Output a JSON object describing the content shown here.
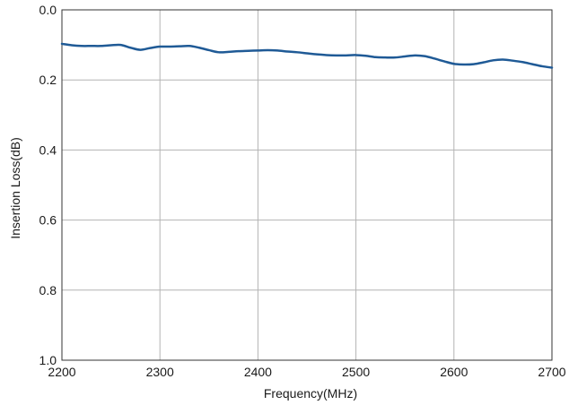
{
  "chart_data": {
    "type": "line",
    "xlabel": "Frequency(MHz)",
    "ylabel": "Insertion Loss(dB)",
    "xlim": [
      2200,
      2700
    ],
    "ylim": [
      0.0,
      1.0
    ],
    "y_inverted": true,
    "grid": true,
    "x_ticks": [
      2200,
      2300,
      2400,
      2500,
      2600,
      2700
    ],
    "x_tick_labels": [
      "2200",
      "2300",
      "2400",
      "2500",
      "2600",
      "2700"
    ],
    "y_ticks": [
      0.0,
      0.2,
      0.4,
      0.6,
      0.8,
      1.0
    ],
    "y_tick_labels": [
      "0.0",
      "0.2",
      "0.4",
      "0.6",
      "0.8",
      "1.0"
    ],
    "line_color": "#1f5a96",
    "series": [
      {
        "x": [
          2200,
          2210,
          2220,
          2230,
          2240,
          2250,
          2260,
          2270,
          2280,
          2290,
          2300,
          2310,
          2320,
          2330,
          2340,
          2350,
          2360,
          2370,
          2380,
          2390,
          2400,
          2410,
          2420,
          2430,
          2440,
          2450,
          2460,
          2470,
          2480,
          2490,
          2500,
          2510,
          2520,
          2530,
          2540,
          2550,
          2560,
          2570,
          2580,
          2590,
          2600,
          2610,
          2620,
          2630,
          2640,
          2650,
          2660,
          2670,
          2680,
          2690,
          2700
        ],
        "y": [
          0.097,
          0.101,
          0.103,
          0.103,
          0.103,
          0.101,
          0.1,
          0.108,
          0.114,
          0.109,
          0.105,
          0.105,
          0.104,
          0.103,
          0.108,
          0.115,
          0.121,
          0.12,
          0.118,
          0.117,
          0.116,
          0.115,
          0.116,
          0.119,
          0.121,
          0.124,
          0.127,
          0.129,
          0.13,
          0.13,
          0.129,
          0.131,
          0.135,
          0.136,
          0.136,
          0.133,
          0.13,
          0.132,
          0.139,
          0.147,
          0.154,
          0.156,
          0.155,
          0.15,
          0.144,
          0.142,
          0.145,
          0.149,
          0.155,
          0.161,
          0.165
        ]
      }
    ]
  }
}
